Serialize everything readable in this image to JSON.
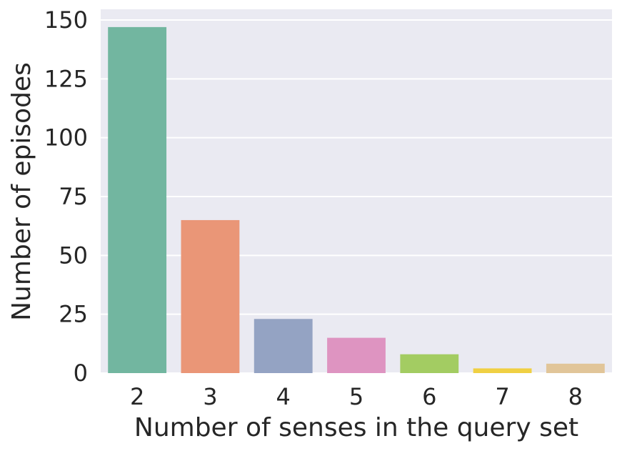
{
  "chart_data": {
    "type": "bar",
    "title": "",
    "xlabel": "Number of senses in the query set",
    "ylabel": "Number of episodes",
    "categories": [
      "2",
      "3",
      "4",
      "5",
      "6",
      "7",
      "8"
    ],
    "values": [
      147,
      65,
      23,
      15,
      8,
      2,
      4
    ],
    "colors": [
      "#72b6a0",
      "#ea9677",
      "#94a3c3",
      "#de94c1",
      "#a3cc62",
      "#f0d043",
      "#e1c599"
    ],
    "ylim": [
      0,
      150
    ],
    "yticks": [
      0,
      25,
      50,
      75,
      100,
      125,
      150
    ],
    "grid": true,
    "background": "#eaeaf2",
    "legend": "none"
  }
}
